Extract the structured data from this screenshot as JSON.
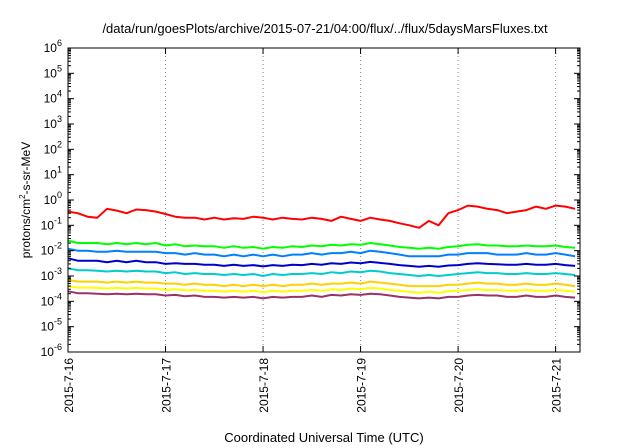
{
  "chart_data": {
    "type": "line",
    "title": "/data/run/goesPlots/archive/2015-07-21/04:00/flux/../flux/5daysMarsFluxes.txt",
    "xlabel": "Coordinated Universal Time (UTC)",
    "ylabel": {
      "prefix": "protons/cm",
      "superscript": "2",
      "suffix": "-s-sr-MeV"
    },
    "yscale": "log",
    "ylim": [
      1e-06,
      1000000.0
    ],
    "xlim": [
      0,
      5.25
    ],
    "y_ticks": [
      {
        "base": "10",
        "exp": "6",
        "value": 1000000.0
      },
      {
        "base": "10",
        "exp": "5",
        "value": 100000.0
      },
      {
        "base": "10",
        "exp": "4",
        "value": 10000.0
      },
      {
        "base": "10",
        "exp": "3",
        "value": 1000.0
      },
      {
        "base": "10",
        "exp": "2",
        "value": 100.0
      },
      {
        "base": "10",
        "exp": "1",
        "value": 10.0
      },
      {
        "base": "10",
        "exp": "0",
        "value": 1.0
      },
      {
        "base": "10",
        "exp": "-1",
        "value": 0.1
      },
      {
        "base": "10",
        "exp": "-2",
        "value": 0.01
      },
      {
        "base": "10",
        "exp": "-3",
        "value": 0.001
      },
      {
        "base": "10",
        "exp": "-4",
        "value": 0.0001
      },
      {
        "base": "10",
        "exp": "-5",
        "value": 1e-05
      },
      {
        "base": "10",
        "exp": "-6",
        "value": 1e-06
      }
    ],
    "x_ticks": [
      {
        "label": "2015-7-16",
        "value": 0
      },
      {
        "label": "2015-7-17",
        "value": 1
      },
      {
        "label": "2015-7-18",
        "value": 2
      },
      {
        "label": "2015-7-19",
        "value": 3
      },
      {
        "label": "2015-7-20",
        "value": 4
      },
      {
        "label": "2015-7-21",
        "value": 5
      }
    ],
    "grid": {
      "vertical": "dotted",
      "horizontal": false
    },
    "legend": "none",
    "series": [
      {
        "color": "#ff0000",
        "x": [
          0.0,
          0.1,
          0.2,
          0.3,
          0.4,
          0.5,
          0.6,
          0.7,
          0.8,
          0.9,
          1.0,
          1.1,
          1.2,
          1.3,
          1.4,
          1.5,
          1.6,
          1.7,
          1.8,
          1.9,
          2.0,
          2.1,
          2.2,
          2.3,
          2.4,
          2.5,
          2.6,
          2.7,
          2.8,
          2.9,
          3.0,
          3.1,
          3.2,
          3.3,
          3.4,
          3.5,
          3.6,
          3.7,
          3.8,
          3.9,
          4.0,
          4.1,
          4.2,
          4.3,
          4.4,
          4.5,
          4.6,
          4.7,
          4.8,
          4.9,
          5.0,
          5.1,
          5.2
        ],
        "y": [
          0.35,
          0.3,
          0.22,
          0.2,
          0.45,
          0.38,
          0.3,
          0.42,
          0.4,
          0.35,
          0.28,
          0.22,
          0.2,
          0.2,
          0.17,
          0.2,
          0.17,
          0.19,
          0.18,
          0.22,
          0.2,
          0.17,
          0.2,
          0.18,
          0.17,
          0.2,
          0.18,
          0.15,
          0.22,
          0.18,
          0.15,
          0.2,
          0.17,
          0.15,
          0.12,
          0.1,
          0.08,
          0.15,
          0.1,
          0.3,
          0.4,
          0.6,
          0.55,
          0.45,
          0.4,
          0.3,
          0.35,
          0.4,
          0.55,
          0.45,
          0.6,
          0.55,
          0.45
        ]
      },
      {
        "color": "#00ff00",
        "x": [
          0.0,
          0.1,
          0.2,
          0.3,
          0.4,
          0.5,
          0.6,
          0.7,
          0.8,
          0.9,
          1.0,
          1.1,
          1.2,
          1.3,
          1.4,
          1.5,
          1.6,
          1.7,
          1.8,
          1.9,
          2.0,
          2.1,
          2.2,
          2.3,
          2.4,
          2.5,
          2.6,
          2.7,
          2.8,
          2.9,
          3.0,
          3.1,
          3.2,
          3.3,
          3.4,
          3.5,
          3.6,
          3.7,
          3.8,
          3.9,
          4.0,
          4.1,
          4.2,
          4.3,
          4.4,
          4.5,
          4.6,
          4.7,
          4.8,
          4.9,
          5.0,
          5.1,
          5.2
        ],
        "y": [
          0.025,
          0.02,
          0.02,
          0.02,
          0.018,
          0.02,
          0.018,
          0.02,
          0.018,
          0.02,
          0.016,
          0.018,
          0.015,
          0.016,
          0.015,
          0.015,
          0.013,
          0.015,
          0.013,
          0.014,
          0.012,
          0.014,
          0.013,
          0.015,
          0.014,
          0.016,
          0.015,
          0.017,
          0.016,
          0.018,
          0.017,
          0.02,
          0.018,
          0.016,
          0.014,
          0.013,
          0.012,
          0.013,
          0.012,
          0.014,
          0.015,
          0.017,
          0.018,
          0.016,
          0.016,
          0.015,
          0.015,
          0.016,
          0.015,
          0.015,
          0.016,
          0.014,
          0.013
        ]
      },
      {
        "color": "#0080ff",
        "x": [
          0.0,
          0.1,
          0.2,
          0.3,
          0.4,
          0.5,
          0.6,
          0.7,
          0.8,
          0.9,
          1.0,
          1.1,
          1.2,
          1.3,
          1.4,
          1.5,
          1.6,
          1.7,
          1.8,
          1.9,
          2.0,
          2.1,
          2.2,
          2.3,
          2.4,
          2.5,
          2.6,
          2.7,
          2.8,
          2.9,
          3.0,
          3.1,
          3.2,
          3.3,
          3.4,
          3.5,
          3.6,
          3.7,
          3.8,
          3.9,
          4.0,
          4.1,
          4.2,
          4.3,
          4.4,
          4.5,
          4.6,
          4.7,
          4.8,
          4.9,
          5.0,
          5.1,
          5.2
        ],
        "y": [
          0.012,
          0.01,
          0.01,
          0.009,
          0.009,
          0.01,
          0.009,
          0.009,
          0.009,
          0.009,
          0.008,
          0.008,
          0.007,
          0.008,
          0.007,
          0.007,
          0.006,
          0.007,
          0.006,
          0.007,
          0.006,
          0.007,
          0.006,
          0.007,
          0.007,
          0.008,
          0.007,
          0.008,
          0.008,
          0.009,
          0.008,
          0.01,
          0.009,
          0.008,
          0.007,
          0.006,
          0.006,
          0.006,
          0.006,
          0.007,
          0.007,
          0.008,
          0.008,
          0.008,
          0.007,
          0.007,
          0.007,
          0.008,
          0.007,
          0.007,
          0.008,
          0.007,
          0.006
        ]
      },
      {
        "color": "#0000cc",
        "x": [
          0.0,
          0.1,
          0.2,
          0.3,
          0.4,
          0.5,
          0.6,
          0.7,
          0.8,
          0.9,
          1.0,
          1.1,
          1.2,
          1.3,
          1.4,
          1.5,
          1.6,
          1.7,
          1.8,
          1.9,
          2.0,
          2.1,
          2.2,
          2.3,
          2.4,
          2.5,
          2.6,
          2.7,
          2.8,
          2.9,
          3.0,
          3.1,
          3.2,
          3.3,
          3.4,
          3.5,
          3.6,
          3.7,
          3.8,
          3.9,
          4.0,
          4.1,
          4.2,
          4.3,
          4.4,
          4.5,
          4.6,
          4.7,
          4.8,
          4.9,
          5.0,
          5.1,
          5.2
        ],
        "y": [
          0.005,
          0.004,
          0.004,
          0.004,
          0.0035,
          0.004,
          0.0035,
          0.004,
          0.0035,
          0.0035,
          0.003,
          0.0032,
          0.003,
          0.003,
          0.0028,
          0.0028,
          0.0025,
          0.0028,
          0.0025,
          0.0027,
          0.0024,
          0.0027,
          0.0025,
          0.0028,
          0.0027,
          0.003,
          0.0028,
          0.0032,
          0.003,
          0.0034,
          0.0032,
          0.0036,
          0.0033,
          0.003,
          0.0027,
          0.0025,
          0.0023,
          0.0025,
          0.0023,
          0.0026,
          0.0027,
          0.003,
          0.0032,
          0.003,
          0.0029,
          0.0028,
          0.0028,
          0.003,
          0.0028,
          0.0028,
          0.003,
          0.0027,
          0.0025
        ]
      },
      {
        "color": "#00cccc",
        "x": [
          0.0,
          0.1,
          0.2,
          0.3,
          0.4,
          0.5,
          0.6,
          0.7,
          0.8,
          0.9,
          1.0,
          1.1,
          1.2,
          1.3,
          1.4,
          1.5,
          1.6,
          1.7,
          1.8,
          1.9,
          2.0,
          2.1,
          2.2,
          2.3,
          2.4,
          2.5,
          2.6,
          2.7,
          2.8,
          2.9,
          3.0,
          3.1,
          3.2,
          3.3,
          3.4,
          3.5,
          3.6,
          3.7,
          3.8,
          3.9,
          4.0,
          4.1,
          4.2,
          4.3,
          4.4,
          4.5,
          4.6,
          4.7,
          4.8,
          4.9,
          5.0,
          5.1,
          5.2
        ],
        "y": [
          0.002,
          0.0017,
          0.0017,
          0.0016,
          0.0015,
          0.0016,
          0.0015,
          0.0016,
          0.0015,
          0.0015,
          0.0013,
          0.0014,
          0.0012,
          0.0013,
          0.0012,
          0.0012,
          0.0011,
          0.0012,
          0.0011,
          0.0012,
          0.001,
          0.0012,
          0.0011,
          0.0012,
          0.0012,
          0.0013,
          0.0012,
          0.0014,
          0.0013,
          0.0015,
          0.0014,
          0.0016,
          0.0015,
          0.0013,
          0.0012,
          0.0011,
          0.001,
          0.0011,
          0.001,
          0.0011,
          0.0012,
          0.0013,
          0.0014,
          0.0013,
          0.0013,
          0.0012,
          0.0012,
          0.0013,
          0.0012,
          0.0012,
          0.0013,
          0.0012,
          0.0011
        ]
      },
      {
        "color": "#ffd000",
        "x": [
          0.0,
          0.1,
          0.2,
          0.3,
          0.4,
          0.5,
          0.6,
          0.7,
          0.8,
          0.9,
          1.0,
          1.1,
          1.2,
          1.3,
          1.4,
          1.5,
          1.6,
          1.7,
          1.8,
          1.9,
          2.0,
          2.1,
          2.2,
          2.3,
          2.4,
          2.5,
          2.6,
          2.7,
          2.8,
          2.9,
          3.0,
          3.1,
          3.2,
          3.3,
          3.4,
          3.5,
          3.6,
          3.7,
          3.8,
          3.9,
          4.0,
          4.1,
          4.2,
          4.3,
          4.4,
          4.5,
          4.6,
          4.7,
          4.8,
          4.9,
          5.0,
          5.1,
          5.2
        ],
        "y": [
          0.0007,
          0.0006,
          0.0006,
          0.0006,
          0.00055,
          0.0006,
          0.00055,
          0.0006,
          0.00055,
          0.00055,
          0.0005,
          0.0005,
          0.00045,
          0.0005,
          0.00045,
          0.00045,
          0.0004,
          0.00045,
          0.0004,
          0.00045,
          0.0004,
          0.00045,
          0.0004,
          0.00045,
          0.00045,
          0.0005,
          0.00045,
          0.0005,
          0.0005,
          0.00055,
          0.0005,
          0.0006,
          0.00055,
          0.0005,
          0.00045,
          0.0004,
          0.0004,
          0.0004,
          0.0004,
          0.00045,
          0.00045,
          0.0005,
          0.00055,
          0.0005,
          0.0005,
          0.00045,
          0.00045,
          0.0005,
          0.00045,
          0.00045,
          0.0005,
          0.00045,
          0.0004
        ]
      },
      {
        "color": "#ffff00",
        "x": [
          0.0,
          0.1,
          0.2,
          0.3,
          0.4,
          0.5,
          0.6,
          0.7,
          0.8,
          0.9,
          1.0,
          1.1,
          1.2,
          1.3,
          1.4,
          1.5,
          1.6,
          1.7,
          1.8,
          1.9,
          2.0,
          2.1,
          2.2,
          2.3,
          2.4,
          2.5,
          2.6,
          2.7,
          2.8,
          2.9,
          3.0,
          3.1,
          3.2,
          3.3,
          3.4,
          3.5,
          3.6,
          3.7,
          3.8,
          3.9,
          4.0,
          4.1,
          4.2,
          4.3,
          4.4,
          4.5,
          4.6,
          4.7,
          4.8,
          4.9,
          5.0,
          5.1,
          5.2
        ],
        "y": [
          0.0004,
          0.00035,
          0.00035,
          0.00034,
          0.00032,
          0.00034,
          0.00032,
          0.00034,
          0.00032,
          0.00032,
          0.00028,
          0.0003,
          0.00027,
          0.00028,
          0.00026,
          0.00026,
          0.00024,
          0.00026,
          0.00024,
          0.00026,
          0.00023,
          0.00026,
          0.00024,
          0.00026,
          0.00026,
          0.00028,
          0.00026,
          0.0003,
          0.00028,
          0.00032,
          0.0003,
          0.00034,
          0.00032,
          0.00028,
          0.00026,
          0.00024,
          0.00022,
          0.00024,
          0.00022,
          0.00025,
          0.00026,
          0.00028,
          0.0003,
          0.00028,
          0.00028,
          0.00026,
          0.00026,
          0.00028,
          0.00026,
          0.00026,
          0.00028,
          0.00026,
          0.00024
        ]
      },
      {
        "color": "#993366",
        "x": [
          0.0,
          0.1,
          0.2,
          0.3,
          0.4,
          0.5,
          0.6,
          0.7,
          0.8,
          0.9,
          1.0,
          1.1,
          1.2,
          1.3,
          1.4,
          1.5,
          1.6,
          1.7,
          1.8,
          1.9,
          2.0,
          2.1,
          2.2,
          2.3,
          2.4,
          2.5,
          2.6,
          2.7,
          2.8,
          2.9,
          3.0,
          3.1,
          3.2,
          3.3,
          3.4,
          3.5,
          3.6,
          3.7,
          3.8,
          3.9,
          4.0,
          4.1,
          4.2,
          4.3,
          4.4,
          4.5,
          4.6,
          4.7,
          4.8,
          4.9,
          5.0,
          5.1,
          5.2
        ],
        "y": [
          0.00025,
          0.00021,
          0.00021,
          0.0002,
          0.00019,
          0.0002,
          0.00019,
          0.0002,
          0.00019,
          0.00019,
          0.00017,
          0.00018,
          0.00016,
          0.00017,
          0.00015,
          0.00015,
          0.00014,
          0.00015,
          0.00014,
          0.00015,
          0.00013,
          0.00015,
          0.00014,
          0.00015,
          0.00015,
          0.00017,
          0.00015,
          0.00018,
          0.00017,
          0.00019,
          0.00018,
          0.0002,
          0.00019,
          0.00017,
          0.00015,
          0.00014,
          0.00013,
          0.00014,
          0.00013,
          0.00015,
          0.00015,
          0.00017,
          0.00018,
          0.00017,
          0.00017,
          0.00015,
          0.00015,
          0.00017,
          0.00015,
          0.00015,
          0.00017,
          0.00015,
          0.00014
        ]
      }
    ]
  }
}
